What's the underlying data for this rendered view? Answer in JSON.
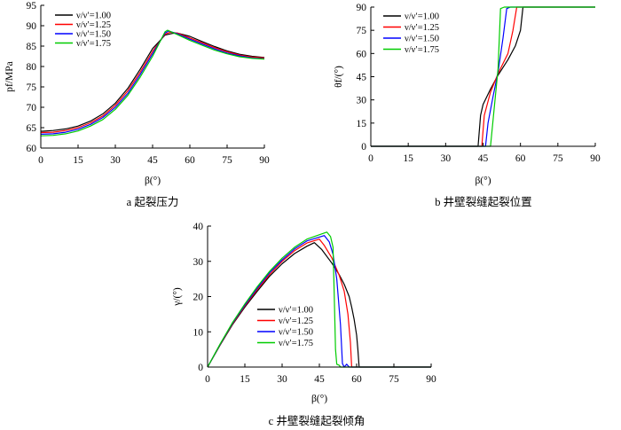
{
  "chart_data": [
    {
      "type": "line",
      "caption": "a 起裂压力",
      "xlabel": "β(°)",
      "ylabel": "pf/MPa",
      "xlim": [
        0,
        90
      ],
      "ylim": [
        60,
        95
      ],
      "xticks": [
        0,
        15,
        30,
        45,
        60,
        75,
        90
      ],
      "yticks": [
        60,
        65,
        70,
        75,
        80,
        85,
        90,
        95
      ],
      "legend_placement": "top-left",
      "series": [
        {
          "name": "ν/ν′=1.00",
          "color": "#000000",
          "x": [
            0,
            5,
            10,
            15,
            20,
            25,
            30,
            35,
            40,
            45,
            50,
            53,
            55,
            60,
            65,
            70,
            75,
            80,
            85,
            90
          ],
          "y": [
            64.1,
            64.3,
            64.7,
            65.4,
            66.6,
            68.4,
            71.0,
            74.6,
            79.3,
            84.4,
            87.7,
            88.1,
            88.2,
            87.4,
            86.1,
            84.9,
            83.8,
            83.0,
            82.5,
            82.2
          ]
        },
        {
          "name": "ν/ν′=1.25",
          "color": "#ff0000",
          "x": [
            0,
            5,
            10,
            15,
            20,
            25,
            30,
            35,
            40,
            45,
            50,
            52,
            55,
            60,
            65,
            70,
            75,
            80,
            85,
            90
          ],
          "y": [
            63.8,
            63.9,
            64.3,
            65.0,
            66.2,
            67.9,
            70.5,
            74.0,
            78.6,
            83.7,
            87.9,
            88.4,
            88.2,
            87.0,
            85.8,
            84.6,
            83.6,
            82.8,
            82.3,
            82.1
          ]
        },
        {
          "name": "ν/ν′=1.50",
          "color": "#0000ff",
          "x": [
            0,
            5,
            10,
            15,
            20,
            25,
            30,
            35,
            40,
            45,
            50,
            51.5,
            55,
            60,
            65,
            70,
            75,
            80,
            85,
            90
          ],
          "y": [
            63.4,
            63.5,
            63.9,
            64.6,
            65.8,
            67.5,
            70.0,
            73.4,
            78.0,
            83.1,
            88.2,
            88.7,
            88.0,
            86.7,
            85.5,
            84.3,
            83.3,
            82.6,
            82.1,
            81.9
          ]
        },
        {
          "name": "ν/ν′=1.75",
          "color": "#00cc00",
          "x": [
            0,
            5,
            10,
            15,
            20,
            25,
            30,
            35,
            40,
            45,
            50,
            51,
            55,
            60,
            65,
            70,
            75,
            80,
            85,
            90
          ],
          "y": [
            63.0,
            63.1,
            63.5,
            64.2,
            65.4,
            67.0,
            69.5,
            72.9,
            77.4,
            82.5,
            88.5,
            88.9,
            87.8,
            86.4,
            85.2,
            84.0,
            83.1,
            82.4,
            82.0,
            81.8
          ]
        }
      ]
    },
    {
      "type": "line",
      "caption": "b 井壁裂缝起裂位置",
      "xlabel": "β(°)",
      "ylabel": "θf/(°)",
      "xlim": [
        0,
        90
      ],
      "ylim": [
        0,
        90
      ],
      "xticks": [
        0,
        15,
        30,
        45,
        60,
        75,
        90
      ],
      "yticks": [
        0,
        15,
        30,
        45,
        60,
        75,
        90
      ],
      "legend_placement": "top-left",
      "series": [
        {
          "name": "ν/ν′=1.00",
          "color": "#000000",
          "x": [
            0,
            43,
            44,
            45,
            48,
            51,
            55,
            58,
            60,
            61,
            90
          ],
          "y": [
            0,
            0,
            20,
            27,
            37,
            46,
            56,
            65,
            75,
            90,
            90
          ]
        },
        {
          "name": "ν/ν′=1.25",
          "color": "#ff0000",
          "x": [
            0,
            44.5,
            45.5,
            48,
            51,
            55,
            57,
            58.5,
            90
          ],
          "y": [
            0,
            0,
            20,
            35,
            47,
            60,
            75,
            90,
            90
          ]
        },
        {
          "name": "ν/ν′=1.50",
          "color": "#0000ff",
          "x": [
            0,
            46,
            47,
            49,
            51,
            53,
            54.5,
            56,
            90
          ],
          "y": [
            0,
            0,
            15,
            32,
            48,
            70,
            89,
            90,
            90
          ]
        },
        {
          "name": "ν/ν′=1.75",
          "color": "#00cc00",
          "x": [
            0,
            48,
            51,
            52,
            53.5,
            90
          ],
          "y": [
            0,
            0,
            50,
            89,
            90,
            90
          ]
        }
      ]
    },
    {
      "type": "line",
      "caption": "c 井壁裂缝起裂倾角",
      "xlabel": "β(°)",
      "ylabel": "γ/(°)",
      "xlim": [
        0,
        90
      ],
      "ylim": [
        0,
        40
      ],
      "xticks": [
        0,
        15,
        30,
        45,
        60,
        75,
        90
      ],
      "yticks": [
        0,
        10,
        20,
        30,
        40
      ],
      "legend_placement": "center",
      "series": [
        {
          "name": "ν/ν′=1.00",
          "color": "#000000",
          "x": [
            0,
            5,
            10,
            15,
            20,
            25,
            30,
            35,
            40,
            43,
            46,
            50,
            53,
            55,
            57,
            58,
            59,
            60,
            60.5,
            61,
            90
          ],
          "y": [
            0,
            6.2,
            12,
            17,
            21.5,
            25.8,
            29.3,
            32.2,
            34.3,
            35.3,
            33.3,
            29.5,
            26.2,
            23.5,
            20,
            17,
            13.5,
            9,
            5,
            0,
            0
          ]
        },
        {
          "name": "ν/ν′=1.25",
          "color": "#ff0000",
          "x": [
            0,
            5,
            10,
            15,
            20,
            25,
            30,
            35,
            40,
            45,
            47,
            50,
            53,
            55,
            56.5,
            57.5,
            58,
            90
          ],
          "y": [
            0,
            6.3,
            12.2,
            17.3,
            22,
            26.3,
            30,
            33,
            35.2,
            36.3,
            34.5,
            31,
            26,
            21.5,
            15,
            7,
            0,
            0
          ]
        },
        {
          "name": "ν/ν′=1.50",
          "color": "#0000ff",
          "x": [
            0,
            5,
            10,
            15,
            20,
            25,
            30,
            35,
            40,
            47,
            49,
            50.5,
            52,
            53.5,
            54.3,
            55,
            56,
            57,
            90
          ],
          "y": [
            0,
            6.4,
            12.4,
            17.6,
            22.4,
            26.8,
            30.4,
            33.5,
            35.8,
            37.3,
            35.5,
            32,
            25,
            12,
            1,
            0,
            0.8,
            0,
            0
          ]
        },
        {
          "name": "ν/ν′=1.75",
          "color": "#00cc00",
          "x": [
            0,
            5,
            10,
            15,
            20,
            25,
            30,
            35,
            40,
            48,
            49.5,
            50.5,
            51,
            51.5,
            52,
            53,
            53.5,
            90
          ],
          "y": [
            0,
            6.5,
            12.6,
            17.9,
            22.8,
            27.2,
            30.9,
            34,
            36.3,
            38.3,
            37,
            34,
            20,
            5,
            0.8,
            0.5,
            0,
            0
          ]
        }
      ]
    }
  ]
}
